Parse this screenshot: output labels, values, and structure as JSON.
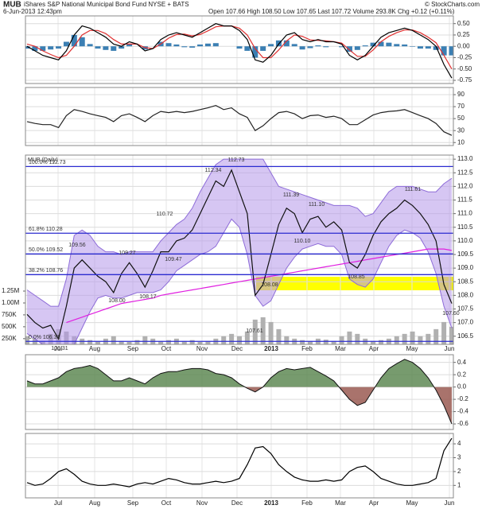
{
  "header": {
    "symbol": "MUB",
    "name": "iShares S&P National Municipal Bond Fund NYSE + BATS",
    "date": "6-Jun-2013 12:43pm",
    "quote": "Open 107.66  High 108.50  Low 107.65  Last 107.72  Volume 293.8K  Chg +0.12 (+0.11%)",
    "credit": "© StockCharts.com"
  },
  "months": [
    "Jul",
    "Aug",
    "Sep",
    "Oct",
    "Nov",
    "Dec",
    "2013",
    "Feb",
    "Mar",
    "Apr",
    "May",
    "Jun"
  ],
  "chart_data": [
    {
      "type": "line",
      "ylim": [
        -0.82,
        0.67
      ],
      "grid": true,
      "yticks": [
        {
          "value": 0.5,
          "label": "0.50"
        },
        0.25,
        {
          "value": 0,
          "label": "0.00"
        },
        -0.25,
        {
          "value": -0.5,
          "label": "-0.50"
        },
        -0.75
      ],
      "series": [
        {
          "style": "histogram",
          "color": "#3b7fb3",
          "values": [
            -0.05,
            -0.1,
            -0.1,
            -0.07,
            -0.05,
            0.1,
            0.25,
            0.2,
            0.05,
            -0.05,
            -0.08,
            -0.1,
            -0.05,
            0.05,
            0,
            -0.07,
            0,
            0.1,
            0.07,
            0.04,
            -0.02,
            -0.03,
            0.04,
            0.06,
            0.07,
            0,
            0,
            -0.05,
            -0.1,
            -0.25,
            -0.1,
            0.05,
            0.13,
            0.13,
            0.05,
            -0.07,
            -0.04,
            0.02,
            -0.02,
            0,
            -0.02,
            -0.12,
            -0.08,
            0.02,
            0.08,
            0.1,
            0.08,
            0.05,
            0.04,
            -0.01,
            -0.05,
            -0.05,
            -0.08,
            -0.2,
            -0.2
          ]
        },
        {
          "style": "line",
          "color": "#e03030",
          "values": [
            0.05,
            0,
            -0.1,
            -0.18,
            -0.25,
            -0.2,
            0,
            0.25,
            0.35,
            0.35,
            0.28,
            0.15,
            0.05,
            0.05,
            0.05,
            -0.03,
            -0.05,
            0.05,
            0.18,
            0.26,
            0.27,
            0.23,
            0.26,
            0.34,
            0.43,
            0.45,
            0.45,
            0.4,
            0.25,
            -0.05,
            -0.25,
            -0.25,
            -0.08,
            0.12,
            0.25,
            0.22,
            0.14,
            0.13,
            0.12,
            0.1,
            0.07,
            -0.08,
            -0.22,
            -0.22,
            -0.08,
            0.1,
            0.22,
            0.3,
            0.36,
            0.36,
            0.3,
            0.2,
            0.08,
            -0.2,
            -0.5
          ]
        },
        {
          "style": "line",
          "color": "#000000",
          "values": [
            0,
            -0.1,
            -0.2,
            -0.25,
            -0.3,
            -0.1,
            0.25,
            0.45,
            0.4,
            0.3,
            0.2,
            0.05,
            0,
            0.1,
            0.05,
            -0.1,
            -0.05,
            0.15,
            0.25,
            0.3,
            0.25,
            0.2,
            0.3,
            0.4,
            0.5,
            0.45,
            0.45,
            0.35,
            0.15,
            -0.3,
            -0.35,
            -0.2,
            0.05,
            0.25,
            0.3,
            0.15,
            0.1,
            0.15,
            0.1,
            0.1,
            0.05,
            -0.2,
            -0.3,
            -0.2,
            0,
            0.2,
            0.3,
            0.35,
            0.4,
            0.35,
            0.25,
            0.15,
            0,
            -0.4,
            -0.7
          ]
        }
      ]
    },
    {
      "type": "line",
      "ylim": [
        5,
        102
      ],
      "grid": true,
      "yticks": [
        90,
        70,
        50,
        30,
        10
      ],
      "series": [
        {
          "style": "line",
          "color": "#222222",
          "values": [
            45,
            42,
            40,
            40,
            35,
            55,
            65,
            62,
            58,
            55,
            52,
            45,
            55,
            58,
            52,
            45,
            55,
            62,
            60,
            62,
            60,
            62,
            65,
            68,
            72,
            65,
            68,
            58,
            52,
            30,
            38,
            50,
            60,
            62,
            58,
            50,
            55,
            56,
            52,
            54,
            50,
            40,
            40,
            48,
            56,
            60,
            62,
            63,
            65,
            60,
            55,
            50,
            42,
            28,
            22
          ]
        }
      ]
    },
    {
      "type": "line",
      "label": "MUB (Daily)",
      "ylim": [
        106.2,
        113.15
      ],
      "grid": true,
      "yticks": [
        {
          "value": 113,
          "label": "113.0"
        },
        112.5,
        {
          "value": 112,
          "label": "112.0"
        },
        111.5,
        {
          "value": 111,
          "label": "111.0"
        },
        110.5,
        {
          "value": 110,
          "label": "110.0"
        },
        109.5,
        {
          "value": 109,
          "label": "109.0"
        },
        108.5,
        {
          "value": 108,
          "label": "108.0"
        },
        107.5,
        {
          "value": 107,
          "label": "107.0"
        },
        106.5
      ],
      "y2lim": [
        130000,
        1250000
      ],
      "y2ticks": [
        {
          "value": 1250000,
          "label": "1.25M"
        },
        {
          "value": 1000000,
          "label": "1.00M"
        },
        {
          "value": 750000,
          "label": "750K"
        },
        {
          "value": 500000,
          "label": "500K"
        },
        {
          "value": 250000,
          "label": "250K"
        }
      ],
      "levels": [
        {
          "value": 112.73,
          "label": "100.0% 112.73"
        },
        {
          "value": 110.28,
          "label": "61.8% 110.28"
        },
        {
          "value": 109.52,
          "label": "50.0% 109.52"
        },
        {
          "value": 108.76,
          "label": "38.2% 108.76"
        },
        {
          "value": 106.31,
          "label": "0.0% 106.31"
        }
      ],
      "annotations": [
        "112.73",
        "112.34",
        "110.72",
        "109.56",
        "109.27",
        "109.47",
        "108.00",
        "108.17",
        "107.61",
        "108.08",
        "111.39",
        "111.10",
        "110.10",
        "108.85",
        "111.61",
        "107.60",
        "106.31"
      ],
      "series": [
        {
          "style": "bar",
          "axis": "y2",
          "color": "#b0b0b0",
          "values": [
            300000,
            250000,
            200000,
            350000,
            450000,
            400000,
            300000,
            250000,
            220000,
            200000,
            250000,
            300000,
            200000,
            180000,
            220000,
            300000,
            250000,
            200000,
            220000,
            250000,
            200000,
            220000,
            180000,
            200000,
            250000,
            300000,
            350000,
            300000,
            400000,
            650000,
            700000,
            600000,
            450000,
            300000,
            250000,
            220000,
            200000,
            250000,
            230000,
            200000,
            300000,
            400000,
            350000,
            250000,
            200000,
            220000,
            250000,
            300000,
            350000,
            400000,
            300000,
            350000,
            450000,
            600000,
            500000
          ]
        },
        {
          "style": "band",
          "color": "#b497ea",
          "upper": [
            108.2,
            108,
            107.8,
            107.6,
            107.6,
            108.6,
            110.2,
            110.4,
            110.2,
            109.8,
            109.6,
            109.6,
            109.5,
            109.6,
            109.6,
            109.6,
            109.6,
            110,
            110.3,
            110.6,
            110.8,
            111.2,
            111.8,
            112.3,
            112.8,
            113,
            113,
            113,
            113,
            113,
            113,
            112.5,
            112,
            111.9,
            111.8,
            111.7,
            111.6,
            111.5,
            111.4,
            111.3,
            111.3,
            111.3,
            111.2,
            110.9,
            111,
            111.4,
            111.8,
            112,
            112,
            112,
            111.9,
            111.8,
            111.8,
            112.1,
            112.3
          ],
          "lower": [
            106.6,
            106.4,
            106.2,
            106.2,
            106,
            105.9,
            106.2,
            106.8,
            107.4,
            107.9,
            108,
            107.9,
            107.9,
            108,
            108.1,
            108.1,
            108.1,
            108.2,
            108.5,
            108.9,
            109.1,
            109.3,
            109.5,
            109.6,
            109.8,
            110.3,
            110.8,
            110.5,
            109.5,
            108,
            107.6,
            107.8,
            108.4,
            109,
            109.4,
            109.7,
            109.8,
            109.9,
            109.8,
            109.8,
            109.5,
            108.6,
            108.4,
            108.3,
            108.6,
            109.2,
            109.8,
            110.2,
            110.4,
            110.3,
            110.1,
            109.6,
            108.8,
            107.6,
            106.8
          ]
        },
        {
          "style": "line",
          "color": "#e020e0",
          "values": [
            null,
            null,
            null,
            null,
            null,
            107,
            107.1,
            107.2,
            107.3,
            107.4,
            107.5,
            107.6,
            107.7,
            107.75,
            107.8,
            107.85,
            107.9,
            108,
            108.05,
            108.1,
            108.15,
            108.2,
            108.25,
            108.3,
            108.35,
            108.4,
            108.45,
            108.5,
            108.55,
            108.6,
            108.65,
            108.7,
            108.75,
            108.8,
            108.85,
            108.9,
            108.95,
            109,
            109.05,
            109.1,
            109.15,
            109.2,
            109.25,
            109.3,
            109.35,
            109.4,
            109.45,
            109.5,
            109.55,
            109.6,
            109.65,
            109.7,
            109.7,
            109.7,
            109.65
          ]
        },
        {
          "style": "line",
          "color": "#111111",
          "values": [
            107.3,
            107,
            106.8,
            106.9,
            106.4,
            107.6,
            109,
            109.3,
            109,
            108.7,
            108.5,
            108.1,
            108.8,
            109.2,
            108.8,
            108.3,
            108.9,
            109.6,
            109.6,
            110,
            110.1,
            110.4,
            111,
            111.6,
            112.2,
            112,
            112.6,
            111.8,
            111,
            108,
            108.4,
            109.5,
            110.6,
            111.2,
            111,
            110.3,
            110.8,
            110.9,
            110.5,
            110.7,
            110.4,
            109.2,
            109,
            109.5,
            110.2,
            110.7,
            111,
            111.2,
            111.5,
            111.3,
            111,
            110.6,
            110,
            108.4,
            107.7
          ]
        }
      ]
    },
    {
      "type": "line",
      "ylim": [
        -0.69,
        0.525
      ],
      "grid": true,
      "yticks": [
        0.4,
        0.2,
        {
          "value": 0,
          "label": "0.0"
        },
        -0.2,
        -0.4,
        -0.6
      ],
      "series": [
        {
          "style": "area",
          "color": "#5f8a55",
          "color_neg": "#9a5a52",
          "values": [
            0.1,
            0.05,
            0.05,
            0.1,
            0.15,
            0.25,
            0.3,
            0.32,
            0.35,
            0.3,
            0.2,
            0.1,
            0.1,
            0.15,
            0.1,
            0.05,
            0.15,
            0.22,
            0.25,
            0.25,
            0.28,
            0.3,
            0.3,
            0.28,
            0.22,
            0.2,
            0.15,
            0.05,
            -0.02,
            -0.08,
            0,
            0.15,
            0.25,
            0.3,
            0.28,
            0.3,
            0.32,
            0.25,
            0.18,
            0.1,
            -0.05,
            -0.2,
            -0.3,
            -0.25,
            -0.05,
            0.15,
            0.3,
            0.38,
            0.45,
            0.4,
            0.3,
            0.15,
            -0.05,
            -0.3,
            -0.6
          ]
        }
      ]
    },
    {
      "type": "line",
      "ylim": [
        0.1,
        4.75
      ],
      "grid": true,
      "yticks": [
        4,
        3,
        2,
        1
      ],
      "series": [
        {
          "style": "line",
          "color": "#000000",
          "values": [
            1.2,
            1,
            1.1,
            1.5,
            2,
            2.2,
            1.8,
            1.3,
            1.1,
            1,
            1,
            1.1,
            1,
            0.9,
            1.1,
            1.2,
            1.1,
            1.3,
            1.5,
            1.4,
            1.2,
            1.1,
            1.1,
            1.2,
            1.3,
            1.2,
            1.3,
            1.5,
            2.5,
            3.7,
            3.8,
            3.3,
            2.5,
            2,
            1.6,
            1.4,
            1.3,
            1.3,
            1.4,
            1.3,
            1.4,
            2,
            2.3,
            2.4,
            2,
            1.5,
            1.3,
            1.1,
            1,
            1,
            1.1,
            1.2,
            1.5,
            3.5,
            4.4
          ]
        }
      ]
    }
  ]
}
